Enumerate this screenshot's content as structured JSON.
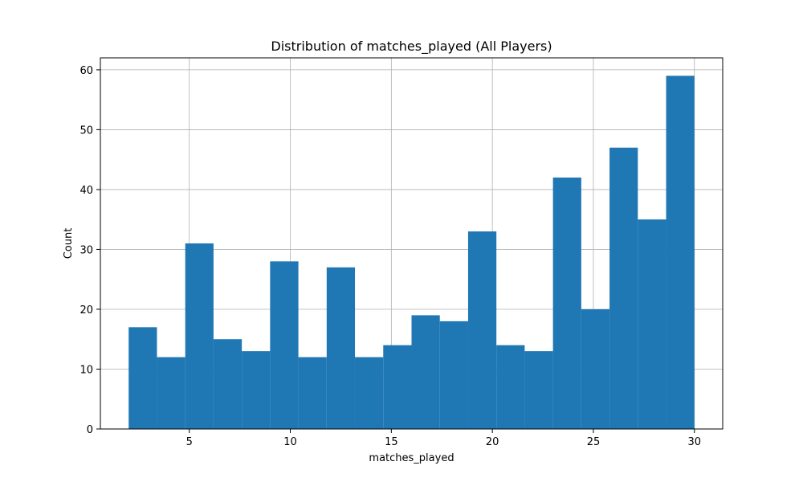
{
  "chart_data": {
    "type": "bar",
    "title": "Distribution of matches_played (All Players)",
    "xlabel": "matches_played",
    "ylabel": "Count",
    "x_range": [
      2,
      30
    ],
    "bin_count": 20,
    "values": [
      17,
      12,
      31,
      15,
      13,
      28,
      12,
      27,
      12,
      14,
      19,
      18,
      33,
      14,
      13,
      42,
      20,
      47,
      35,
      59
    ],
    "xlim": [
      0.6,
      31.4
    ],
    "ylim": [
      0,
      62
    ],
    "xticks": [
      5,
      10,
      15,
      20,
      25,
      30
    ],
    "yticks": [
      0,
      10,
      20,
      30,
      40,
      50,
      60
    ],
    "grid": true,
    "bar_color": "#1f77b4"
  }
}
